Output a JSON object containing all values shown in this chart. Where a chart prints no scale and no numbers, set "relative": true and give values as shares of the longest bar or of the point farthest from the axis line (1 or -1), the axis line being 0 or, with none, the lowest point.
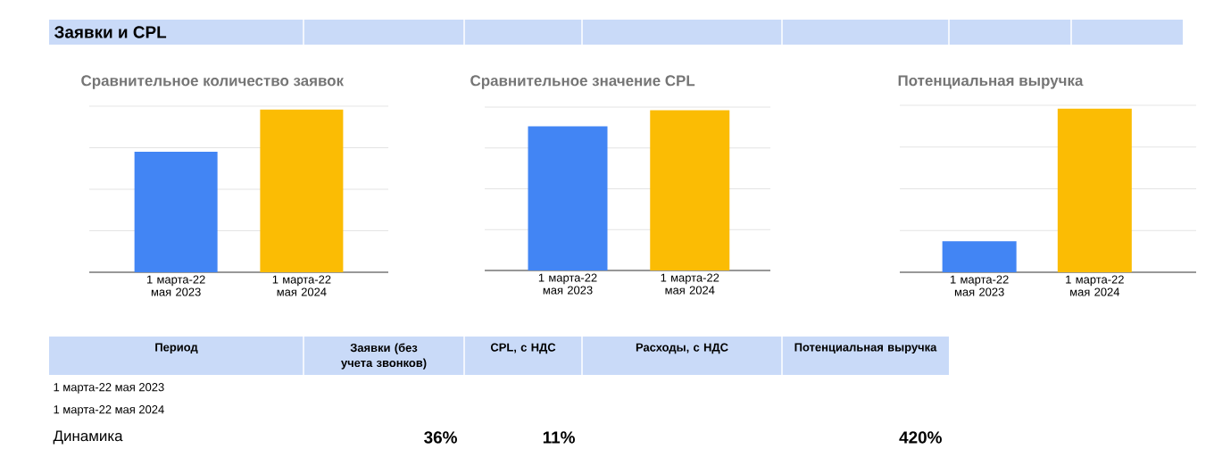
{
  "chart_data": [
    {
      "type": "other",
      "title": "Заявки и CPL"
    },
    {
      "type": "bar",
      "title": "Сравнительное количество заявок",
      "categories": [
        "1 марта-22 мая 2023",
        "1 марта-22 мая 2024"
      ],
      "values": [
        0.74,
        1
      ],
      "colors": [
        "#4285f4",
        "#fbbc04"
      ],
      "relative": true,
      "grid": "y"
    },
    {
      "type": "bar",
      "title": "Сравнительное значение CPL",
      "categories": [
        "1 марта-22 мая 2023",
        "1 марта-22 мая 2024"
      ],
      "values": [
        0.9,
        1
      ],
      "colors": [
        "#4285f4",
        "#fbbc04"
      ],
      "relative": true,
      "grid": "y"
    },
    {
      "type": "bar",
      "title": "Потенциальная выручка",
      "categories": [
        "1 марта-22 мая 2023",
        "1 марта-22 мая 2024"
      ],
      "values": [
        0.19,
        1
      ],
      "colors": [
        "#4285f4",
        "#fbbc04"
      ],
      "relative": true,
      "grid": "y"
    },
    {
      "type": "other",
      "categories": [
        "Период",
        "Заявки (без учета звонков)",
        "CPL, с НДС",
        "Расходы, с НДС",
        "Потенциальная выручка"
      ],
      "values": [
        null,
        36,
        11,
        null,
        420
      ],
      "value_labels": [
        null,
        "36%",
        "11%",
        null,
        "420%"
      ],
      "annotations": [
        "1 марта-22 мая 2023",
        "1 марта-22 мая 2024",
        "Динамика"
      ]
    }
  ]
}
